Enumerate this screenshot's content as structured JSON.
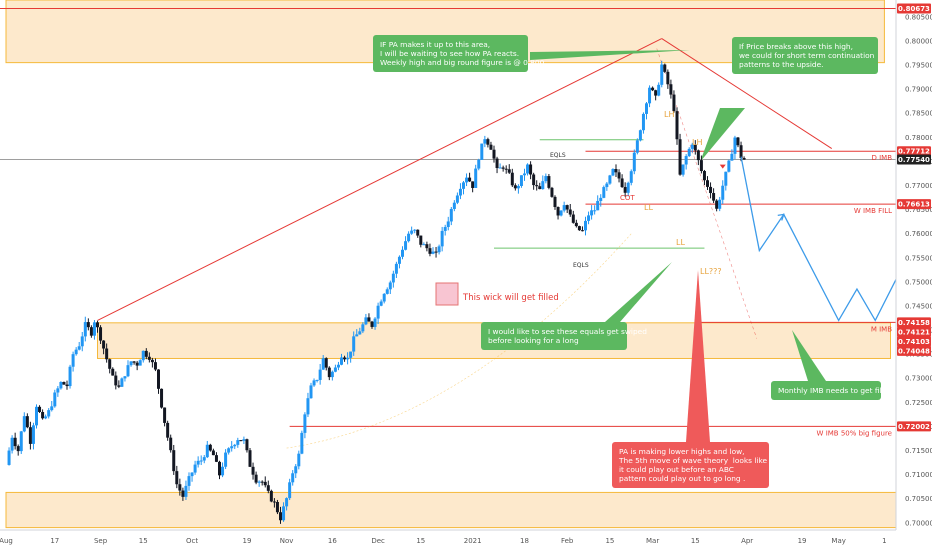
{
  "axis": {
    "currency": "USD",
    "price_ticks": [
      "0.80500",
      "0.80000",
      "0.79500",
      "0.79000",
      "0.78500",
      "0.78000",
      "0.77500",
      "0.77000",
      "0.76500",
      "0.76000",
      "0.75500",
      "0.75000",
      "0.74500",
      "0.74000",
      "0.73500",
      "0.73000",
      "0.72500",
      "0.72000",
      "0.71500",
      "0.71000",
      "0.70500",
      "0.70000",
      "0.69500"
    ],
    "date_ticks": [
      "Aug",
      "17",
      "Sep",
      "15",
      "Oct",
      "19",
      "Nov",
      "16",
      "Dec",
      "15",
      "2021",
      "18",
      "Feb",
      "15",
      "Mar",
      "15",
      "Apr",
      "19",
      "May",
      "1"
    ]
  },
  "price_labels": [
    {
      "text": "0.80673",
      "price": 0.80673,
      "color": "#e53935"
    },
    {
      "text": "0.77712",
      "price": 0.77712,
      "color": "#e53935"
    },
    {
      "text": "0.77540",
      "price": 0.7754,
      "color": "#222222"
    },
    {
      "text": "0.76613",
      "price": 0.76613,
      "color": "#e53935"
    },
    {
      "text": "0.74158",
      "price": 0.74158,
      "color": "#e53935"
    },
    {
      "text": "0.74121",
      "price": 0.74121,
      "color": "#e53935"
    },
    {
      "text": "0.74103",
      "price": 0.74103,
      "color": "#e53935"
    },
    {
      "text": "0.74048",
      "price": 0.74048,
      "color": "#e53935"
    },
    {
      "text": "0.72002",
      "price": 0.72002,
      "color": "#e53935"
    }
  ],
  "level_labels": {
    "d_imb": "D IMB",
    "w_imb_fill": "W IMB FILL",
    "m_imb": "M IMB",
    "w_imb_50": "W IMB 50% big figure"
  },
  "chart_labels": {
    "eqls_top": "EQLS",
    "eqls_bottom": "EQLS",
    "cot": "COT",
    "lh_1": "LH",
    "lh_2": "LH",
    "ll_1": "LL",
    "ll_2": "LL",
    "ll_question": "LL???",
    "wick_note": "This wick will get filled"
  },
  "notes": {
    "weekly_high": "IF PA makes it up to this area,\nI will be waiting to see how PA reacts.\nWeekly high and big round figure is @ 0.800",
    "breakout": "If Price breaks above this high,\nwe could for short term continuation\npatterns to the upside.",
    "equals": "I would like to see these equals get swiped\nbefore looking for a long",
    "monthly_imb": "Monthly IMB needs to get filled",
    "lower_highs": "PA is making lower highs and low,\nThe 5th move of wave theory  looks like\nit could play out before an ABC\npattern could play out to go long ."
  },
  "colors": {
    "up": "#2196f3",
    "down": "#131722",
    "zone_fill": "#fde9cc",
    "zone_border": "#f5b93b",
    "red_line": "#e53935",
    "green_line": "#6cc46c",
    "projection": "#3d9be9",
    "note_green": "#5cb860",
    "note_red": "#ef5a5a"
  },
  "chart_data": {
    "type": "candlestick",
    "symbol_quote": "USD",
    "ylim": [
      0.6985,
      0.8085
    ],
    "date_ticks": [
      {
        "label": "Aug",
        "day": 0
      },
      {
        "label": "17",
        "day": 16
      },
      {
        "label": "Sep",
        "day": 31
      },
      {
        "label": "15",
        "day": 45
      },
      {
        "label": "Oct",
        "day": 61
      },
      {
        "label": "19",
        "day": 79
      },
      {
        "label": "Nov",
        "day": 92
      },
      {
        "label": "16",
        "day": 107
      },
      {
        "label": "Dec",
        "day": 122
      },
      {
        "label": "15",
        "day": 136
      },
      {
        "label": "2021",
        "day": 153
      },
      {
        "label": "18",
        "day": 170
      },
      {
        "label": "Feb",
        "day": 184
      },
      {
        "label": "15",
        "day": 198
      },
      {
        "label": "Mar",
        "day": 212
      },
      {
        "label": "15",
        "day": 226
      },
      {
        "label": "Apr",
        "day": 243
      },
      {
        "label": "19",
        "day": 261
      },
      {
        "label": "May",
        "day": 273
      },
      {
        "label": "1",
        "day": 288
      }
    ],
    "ohlc_path": [
      [
        0,
        0.712
      ],
      [
        2,
        0.718
      ],
      [
        4,
        0.715
      ],
      [
        6,
        0.7225
      ],
      [
        8,
        0.717
      ],
      [
        10,
        0.7245
      ],
      [
        12,
        0.721
      ],
      [
        14,
        0.723
      ],
      [
        16,
        0.7265
      ],
      [
        18,
        0.729
      ],
      [
        20,
        0.7285
      ],
      [
        22,
        0.735
      ],
      [
        24,
        0.737
      ],
      [
        26,
        0.741
      ],
      [
        28,
        0.7395
      ],
      [
        29,
        0.742
      ],
      [
        31,
        0.7385
      ],
      [
        33,
        0.734
      ],
      [
        35,
        0.73
      ],
      [
        37,
        0.728
      ],
      [
        39,
        0.731
      ],
      [
        41,
        0.7335
      ],
      [
        43,
        0.733
      ],
      [
        45,
        0.7355
      ],
      [
        47,
        0.7345
      ],
      [
        49,
        0.7315
      ],
      [
        50,
        0.728
      ],
      [
        52,
        0.721
      ],
      [
        54,
        0.7145
      ],
      [
        56,
        0.708
      ],
      [
        58,
        0.7055
      ],
      [
        60,
        0.709
      ],
      [
        62,
        0.712
      ],
      [
        64,
        0.713
      ],
      [
        66,
        0.7155
      ],
      [
        68,
        0.714
      ],
      [
        70,
        0.71
      ],
      [
        72,
        0.714
      ],
      [
        74,
        0.716
      ],
      [
        76,
        0.7175
      ],
      [
        78,
        0.717
      ],
      [
        80,
        0.712
      ],
      [
        82,
        0.709
      ],
      [
        84,
        0.7085
      ],
      [
        86,
        0.706
      ],
      [
        88,
        0.704
      ],
      [
        90,
        0.701
      ],
      [
        92,
        0.705
      ],
      [
        94,
        0.7105
      ],
      [
        96,
        0.714
      ],
      [
        98,
        0.723
      ],
      [
        100,
        0.728
      ],
      [
        102,
        0.73
      ],
      [
        104,
        0.734
      ],
      [
        106,
        0.7305
      ],
      [
        108,
        0.732
      ],
      [
        110,
        0.735
      ],
      [
        112,
        0.734
      ],
      [
        114,
        0.738
      ],
      [
        116,
        0.74
      ],
      [
        118,
        0.742
      ],
      [
        120,
        0.741
      ],
      [
        122,
        0.745
      ],
      [
        124,
        0.748
      ],
      [
        126,
        0.75
      ],
      [
        128,
        0.7535
      ],
      [
        130,
        0.757
      ],
      [
        132,
        0.76
      ],
      [
        134,
        0.7605
      ],
      [
        136,
        0.758
      ],
      [
        138,
        0.757
      ],
      [
        139,
        0.7565
      ],
      [
        141,
        0.7555
      ],
      [
        143,
        0.76
      ],
      [
        145,
        0.763
      ],
      [
        147,
        0.767
      ],
      [
        149,
        0.77
      ],
      [
        151,
        0.772
      ],
      [
        153,
        0.77
      ],
      [
        155,
        0.776
      ],
      [
        157,
        0.78
      ],
      [
        159,
        0.778
      ],
      [
        161,
        0.773
      ],
      [
        163,
        0.774
      ],
      [
        165,
        0.772
      ],
      [
        167,
        0.769
      ],
      [
        169,
        0.7715
      ],
      [
        171,
        0.774
      ],
      [
        173,
        0.77
      ],
      [
        175,
        0.769
      ],
      [
        177,
        0.772
      ],
      [
        179,
        0.768
      ],
      [
        181,
        0.764
      ],
      [
        183,
        0.7665
      ],
      [
        185,
        0.7635
      ],
      [
        187,
        0.761
      ],
      [
        189,
        0.7605
      ],
      [
        191,
        0.764
      ],
      [
        193,
        0.765
      ],
      [
        195,
        0.768
      ],
      [
        197,
        0.77
      ],
      [
        199,
        0.773
      ],
      [
        201,
        0.7715
      ],
      [
        203,
        0.769
      ],
      [
        205,
        0.7735
      ],
      [
        207,
        0.779
      ],
      [
        209,
        0.785
      ],
      [
        211,
        0.7905
      ],
      [
        213,
        0.788
      ],
      [
        215,
        0.795
      ],
      [
        217,
        0.791
      ],
      [
        219,
        0.786
      ],
      [
        221,
        0.772
      ],
      [
        223,
        0.776
      ],
      [
        225,
        0.779
      ],
      [
        227,
        0.775
      ],
      [
        229,
        0.771
      ],
      [
        231,
        0.769
      ],
      [
        233,
        0.765
      ],
      [
        235,
        0.77
      ],
      [
        237,
        0.7745
      ],
      [
        239,
        0.78
      ],
      [
        241,
        0.776
      ],
      [
        242,
        0.7754
      ]
    ],
    "horizontal_levels": [
      {
        "label": "0.80673",
        "price": 0.80673,
        "color": "#e53935"
      },
      {
        "label": "D IMB",
        "price": 0.77712,
        "color": "#e53935"
      },
      {
        "label": "0.77540",
        "price": 0.7754,
        "color": "#9e9e9e"
      },
      {
        "label": "W IMB FILL",
        "price": 0.76613,
        "color": "#e53935"
      },
      {
        "label": "M IMB",
        "price": 0.74158,
        "color": "#e53935"
      },
      {
        "label": "W IMB 50% big figure",
        "price": 0.72002,
        "color": "#e53935"
      }
    ],
    "zones": [
      {
        "from_price": 0.7955,
        "to_price": 0.8085,
        "from_day": 0,
        "to_day": 288
      },
      {
        "from_price": 0.7341,
        "to_price": 0.7415,
        "from_day": 30,
        "to_day": 290
      },
      {
        "from_price": 0.699,
        "to_price": 0.7063,
        "from_day": 0,
        "to_day": 292
      }
    ],
    "trendline": {
      "from_day": 30,
      "from_price": 0.742,
      "to_day": 215,
      "to_price": 0.8005
    },
    "equal_lows": {
      "price": 0.757,
      "from_day": 160,
      "to_day": 229
    },
    "equal_highs": {
      "price": 0.7795,
      "from_day": 175,
      "to_day": 209
    },
    "projection_path": [
      [
        241,
        0.776
      ],
      [
        247,
        0.7565
      ],
      [
        255,
        0.764
      ],
      [
        273,
        0.742
      ],
      [
        279,
        0.7485
      ],
      [
        285,
        0.742
      ],
      [
        297,
        0.757
      ]
    ],
    "last_price": 0.7754
  }
}
